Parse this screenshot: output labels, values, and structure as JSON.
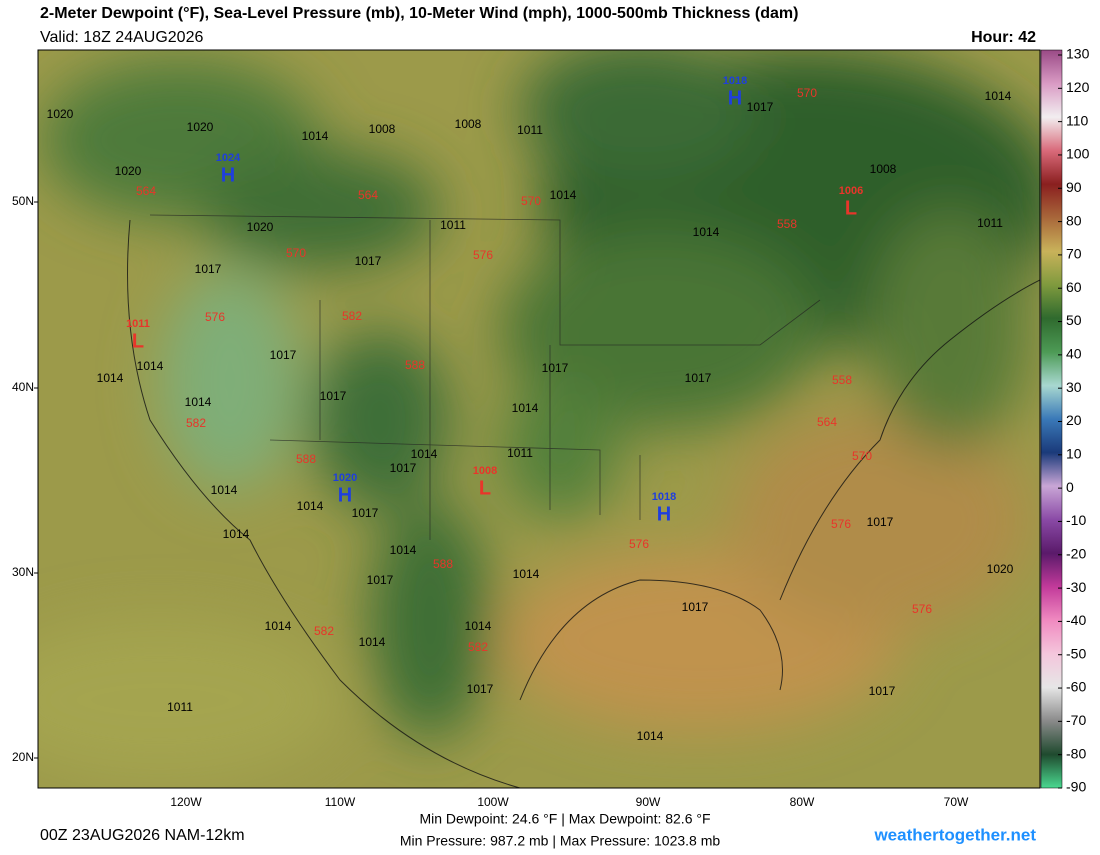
{
  "header": {
    "title": "2-Meter Dewpoint (°F), Sea-Level Pressure (mb), 10-Meter Wind (mph), 1000-500mb Thickness (dam)",
    "valid": "Valid: 18Z 24AUG2026",
    "hour": "Hour: 42"
  },
  "colorbar": {
    "ticks": [
      130,
      120,
      110,
      100,
      90,
      80,
      70,
      60,
      50,
      40,
      30,
      20,
      10,
      0,
      -10,
      -20,
      -30,
      -40,
      -50,
      -60,
      -70,
      -80,
      -90
    ],
    "colors": [
      "#9a4a86",
      "#d99bc4",
      "#f2eef0",
      "#d96a7a",
      "#8a1f1f",
      "#a8673a",
      "#c9b25a",
      "#7f9a3e",
      "#2f6a2e",
      "#4d9a55",
      "#a8d8d0",
      "#3a79b8",
      "#1a3a7a",
      "#c9a6d6",
      "#8a4aa6",
      "#5a1a6a",
      "#c23a9a",
      "#f08ac0",
      "#f4c6dc",
      "#e6e6e6",
      "#8a8a8a",
      "#1f4a2e",
      "#4ad890"
    ]
  },
  "latitudes": [
    "50N",
    "40N",
    "30N",
    "20N"
  ],
  "longitudes": [
    "120W",
    "110W",
    "100W",
    "90W",
    "80W",
    "70W"
  ],
  "centers": [
    {
      "letter": "H",
      "pressure": 1018
    },
    {
      "letter": "L",
      "pressure": 1006
    },
    {
      "letter": "H",
      "pressure": 1024
    },
    {
      "letter": "L",
      "pressure": 1011
    },
    {
      "letter": "H",
      "pressure": 1020
    },
    {
      "letter": "L",
      "pressure": 1008
    },
    {
      "letter": "H",
      "pressure": 1018
    }
  ],
  "isobar_labels": [
    1020,
    1020,
    1020,
    1014,
    1008,
    1008,
    1011,
    1014,
    1017,
    1014,
    1008,
    1011,
    1020,
    1011,
    1014,
    1017,
    1017,
    1014,
    1014,
    1017,
    1017,
    1014,
    1017,
    1017,
    1014,
    1011,
    1014,
    1017,
    1014,
    1014,
    1017,
    1014,
    1014,
    1017,
    1014,
    1017,
    1020,
    1017,
    1014,
    1014,
    1014,
    1017,
    1017,
    1011,
    1014
  ],
  "thickness_labels": [
    570,
    564,
    564,
    570,
    558,
    570,
    576,
    576,
    582,
    588,
    558,
    564,
    570,
    582,
    588,
    576,
    576,
    588,
    582,
    576,
    582
  ],
  "footer": {
    "run": "00Z 23AUG2026 NAM-12km",
    "dewpoint": "Min Dewpoint:  24.6 °F | Max Dewpoint:  82.6 °F",
    "pressure": "Min Pressure: 987.2 mb | Max Pressure: 1023.8 mb",
    "site": "weathertogether.net"
  }
}
